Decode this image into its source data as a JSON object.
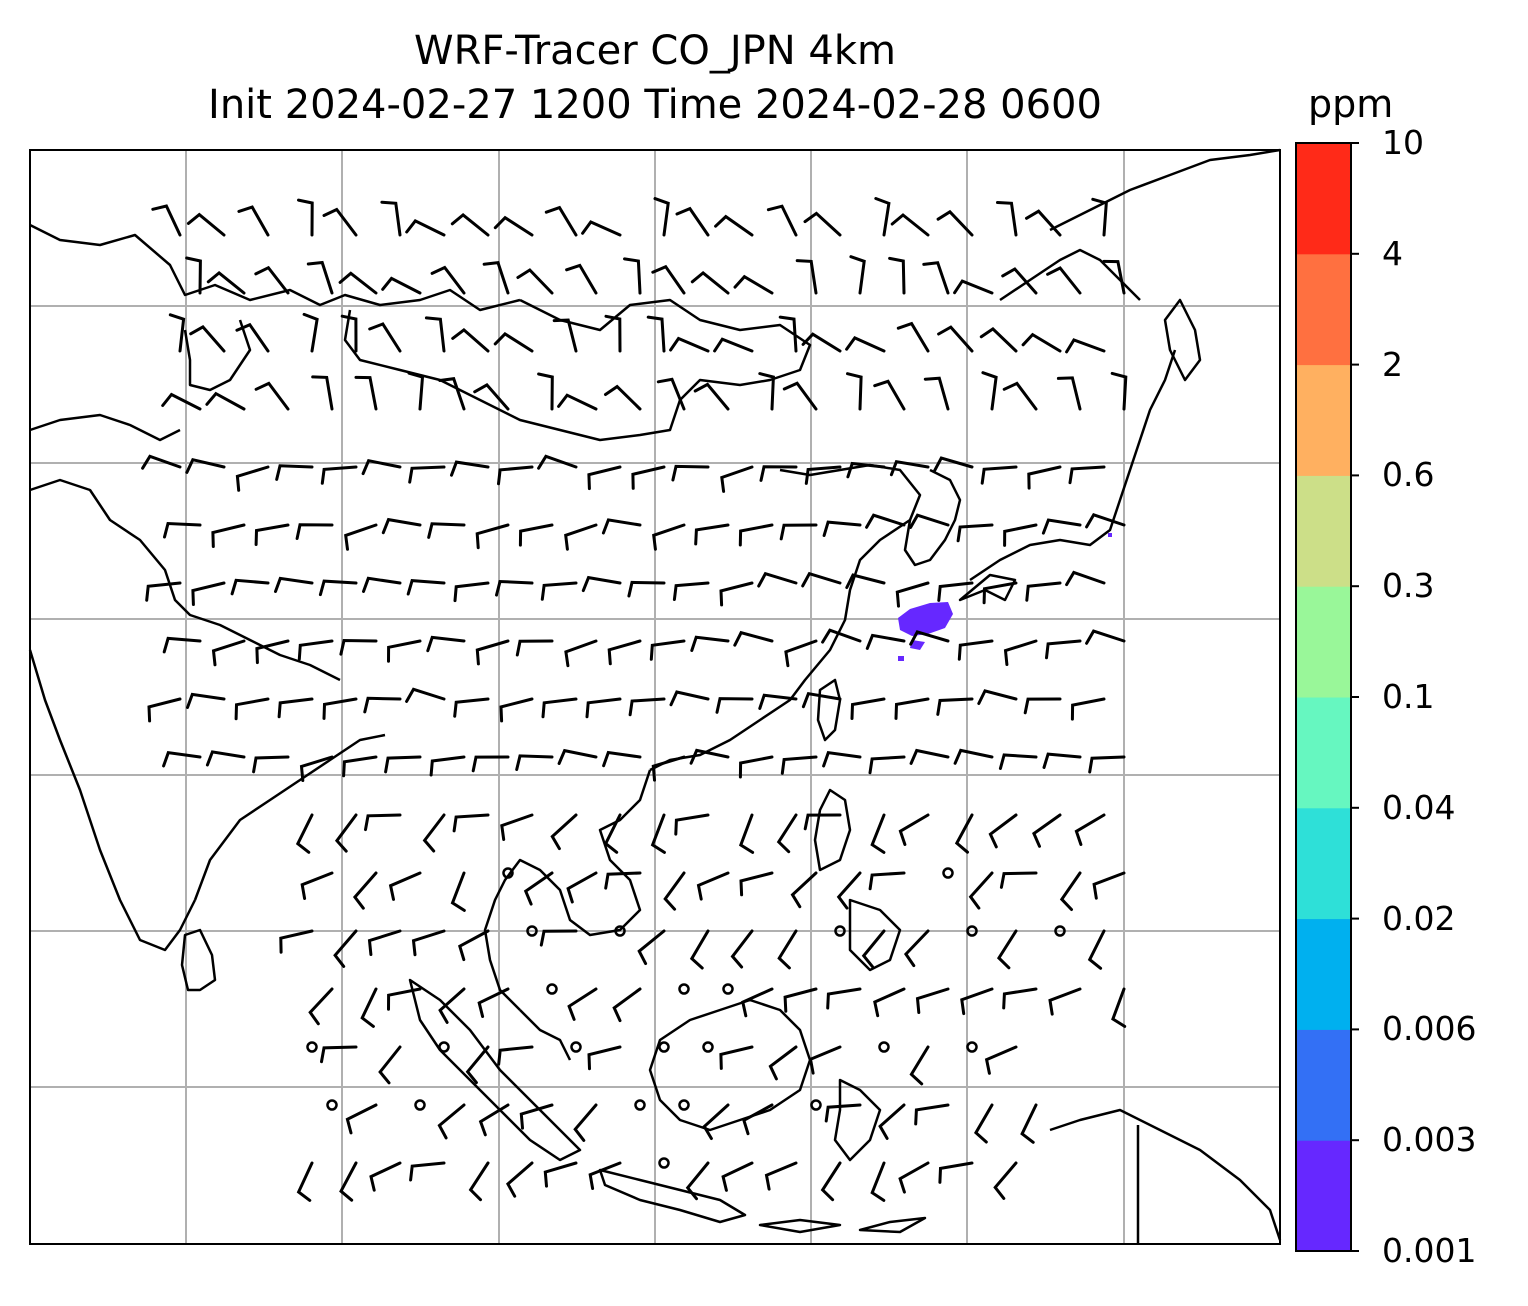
{
  "title": {
    "line1": "WRF-Tracer CO_JPN 4km",
    "line2": "Init 2024-02-27 1200 Time 2024-02-28 0600"
  },
  "colorbar": {
    "unit": "ppm",
    "levels": [
      "0.001",
      "0.003",
      "0.006",
      "0.02",
      "0.04",
      "0.1",
      "0.3",
      "0.6",
      "2",
      "4",
      "10"
    ],
    "colors": [
      "#6628ff",
      "#3370f5",
      "#00b0ef",
      "#2ee0d8",
      "#66f7c0",
      "#99f799",
      "#ccdf88",
      "#ffb060",
      "#ff7040",
      "#ff2a18"
    ]
  },
  "map": {
    "projection": "lat-lon grid",
    "gridlines": true,
    "coastlines": true,
    "plume_color": "#6628ff"
  }
}
